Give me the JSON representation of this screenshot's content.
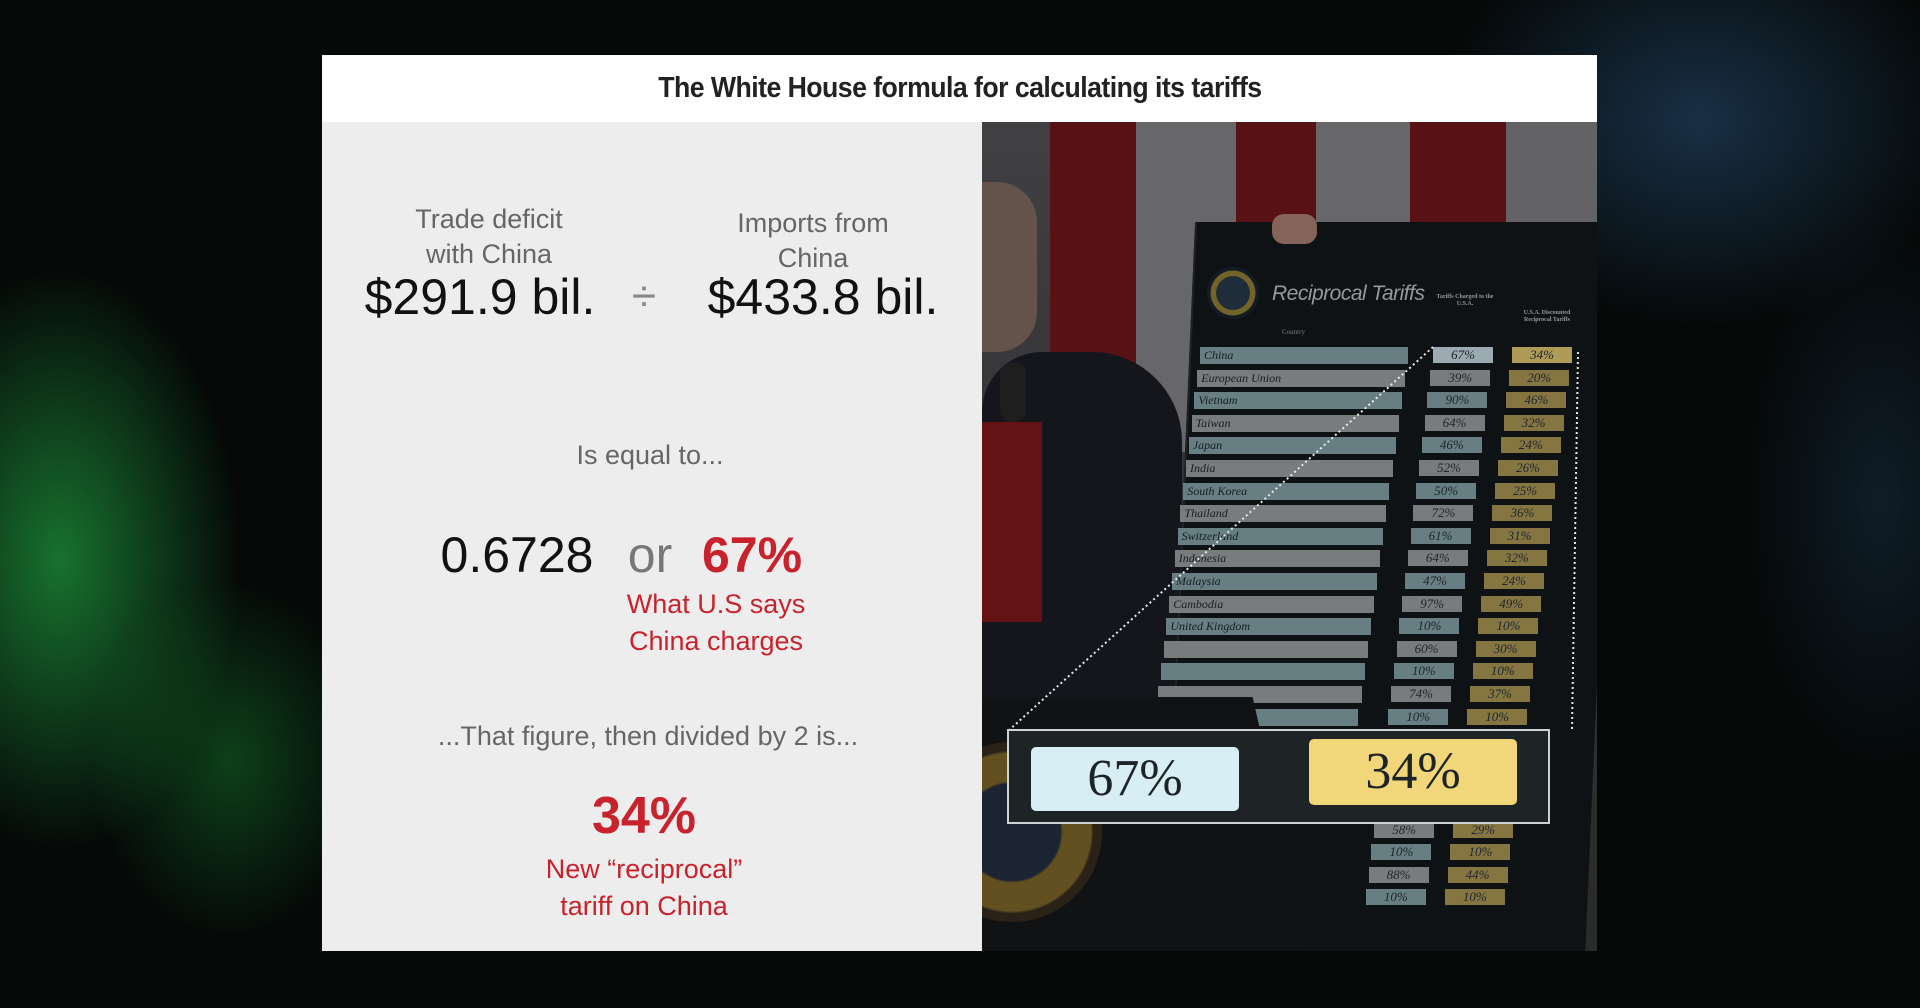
{
  "title": "The White House formula for calculating its tariffs",
  "formula": {
    "deficit_label_1": "Trade deficit",
    "deficit_label_2": "with China",
    "deficit_value": "$291.9 bil.",
    "divide_symbol": "÷",
    "imports_label_1": "Imports from",
    "imports_label_2": "China",
    "imports_value": "$433.8 bil.",
    "equal_text": "Is equal to...",
    "ratio_value": "0.6728",
    "or_text": "or",
    "percent_value": "67%",
    "percent_note_1": "What U.S says",
    "percent_note_2": "China charges",
    "divided_text": "...That figure, then divided by 2 is...",
    "tariff_value": "34%",
    "tariff_note_1": "New “reciprocal”",
    "tariff_note_2": "tariff on China"
  },
  "colors": {
    "accent_red": "#c8232c",
    "board_blue": "#8fb0b4",
    "board_gray": "#a9abae",
    "board_gold": "#b9a25a",
    "highlight_blue": "#d8eef5",
    "highlight_gold": "#f2d77a"
  },
  "board": {
    "title": "Reciprocal Tariffs",
    "country_header": "Country",
    "charged_header": "Tariffs Charged to the U.S.A.",
    "discount_header": "U.S.A. Discounted Reciprocal Tariffs",
    "rows": [
      {
        "country": "China",
        "charged": "67%",
        "reciprocal": "34%"
      },
      {
        "country": "European Union",
        "charged": "39%",
        "reciprocal": "20%"
      },
      {
        "country": "Vietnam",
        "charged": "90%",
        "reciprocal": "46%"
      },
      {
        "country": "Taiwan",
        "charged": "64%",
        "reciprocal": "32%"
      },
      {
        "country": "Japan",
        "charged": "46%",
        "reciprocal": "24%"
      },
      {
        "country": "India",
        "charged": "52%",
        "reciprocal": "26%"
      },
      {
        "country": "South Korea",
        "charged": "50%",
        "reciprocal": "25%"
      },
      {
        "country": "Thailand",
        "charged": "72%",
        "reciprocal": "36%"
      },
      {
        "country": "Switzerland",
        "charged": "61%",
        "reciprocal": "31%"
      },
      {
        "country": "Indonesia",
        "charged": "64%",
        "reciprocal": "32%"
      },
      {
        "country": "Malaysia",
        "charged": "47%",
        "reciprocal": "24%"
      },
      {
        "country": "Cambodia",
        "charged": "97%",
        "reciprocal": "49%"
      },
      {
        "country": "United Kingdom",
        "charged": "10%",
        "reciprocal": "10%"
      },
      {
        "country": "",
        "charged": "60%",
        "reciprocal": "30%"
      },
      {
        "country": "",
        "charged": "10%",
        "reciprocal": "10%"
      },
      {
        "country": "",
        "charged": "74%",
        "reciprocal": "37%"
      },
      {
        "country": "",
        "charged": "10%",
        "reciprocal": "10%"
      }
    ],
    "lower_rows": [
      {
        "charged": "58%",
        "reciprocal": "29%"
      },
      {
        "charged": "10%",
        "reciprocal": "10%"
      },
      {
        "charged": "88%",
        "reciprocal": "44%"
      },
      {
        "charged": "10%",
        "reciprocal": "10%"
      }
    ]
  },
  "inset": {
    "charged": "67%",
    "reciprocal": "34%"
  }
}
